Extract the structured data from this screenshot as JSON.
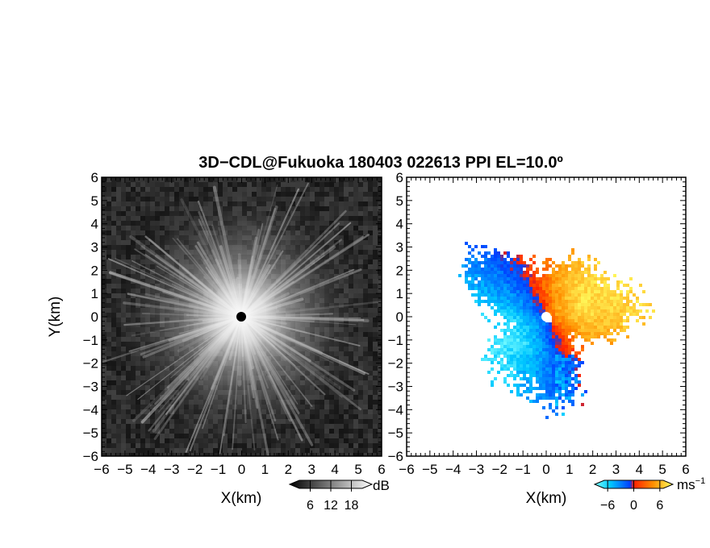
{
  "title": "3D−CDL@Fukuoka 180403 022613 PPI EL=10.0º",
  "colors": {
    "background": "#ffffff",
    "axis": "#000000"
  },
  "chart_data": [
    {
      "type": "heatmap",
      "panel": "left",
      "field": "reflectivity",
      "colormap": "greyscale",
      "xlabel": "X(km)",
      "ylabel": "Y(km)",
      "xlim": [
        -6,
        6
      ],
      "ylim": [
        -6,
        6
      ],
      "x_ticks": [
        "−6",
        "−5",
        "−4",
        "−3",
        "−2",
        "−1",
        "0",
        "1",
        "2",
        "3",
        "4",
        "5",
        "6"
      ],
      "y_ticks": [
        "−6",
        "−5",
        "−4",
        "−3",
        "−2",
        "−1",
        "0",
        "1",
        "2",
        "3",
        "4",
        "5",
        "6"
      ],
      "colorbar": {
        "ticks": [
          "6",
          "12",
          "18"
        ],
        "unit": "dB",
        "range": [
          0,
          24
        ]
      },
      "center_marker": "black dot at (0, 0)"
    },
    {
      "type": "heatmap",
      "panel": "right",
      "field": "radial velocity",
      "colormap": "diverging cyan-blue-red-yellow",
      "xlabel": "X(km)",
      "xlim": [
        -6,
        6
      ],
      "ylim": [
        -6,
        6
      ],
      "x_ticks": [
        "−6",
        "−5",
        "−4",
        "−3",
        "−2",
        "−1",
        "0",
        "1",
        "2",
        "3",
        "4",
        "5",
        "6"
      ],
      "y_ticks": [
        "−6",
        "−5",
        "−4",
        "−3",
        "−2",
        "−1",
        "0",
        "1",
        "2",
        "3",
        "4",
        "5",
        "6"
      ],
      "colorbar": {
        "ticks": [
          "−6",
          "0",
          "6"
        ],
        "unit": "ms",
        "unit_exp": "−1",
        "range": [
          -9,
          9
        ]
      },
      "extent_km": {
        "x": [
          -4.3,
          4.3
        ],
        "y": [
          -4.0,
          4.6
        ]
      },
      "center_marker": "white dot at (0, 0)"
    }
  ]
}
